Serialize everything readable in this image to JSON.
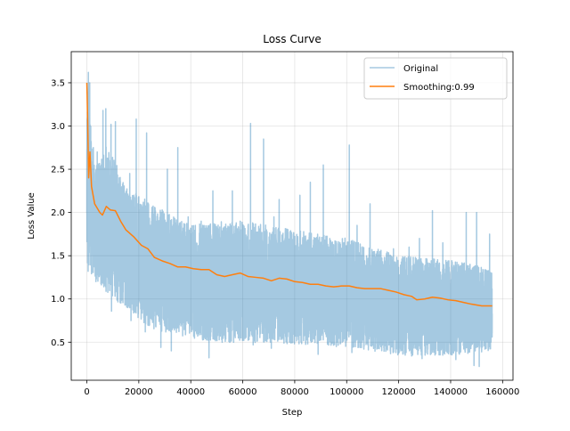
{
  "chart_data": {
    "type": "line",
    "title": "Loss Curve",
    "xlabel": "Step",
    "ylabel": "Loss Value",
    "xlim": [
      -6000,
      164000
    ],
    "ylim": [
      0.06,
      3.86
    ],
    "xticks": [
      0,
      20000,
      40000,
      60000,
      80000,
      100000,
      120000,
      140000,
      160000
    ],
    "yticks": [
      0.5,
      1.0,
      1.5,
      2.0,
      2.5,
      3.0,
      3.5
    ],
    "grid": true,
    "legend_position": "top-right",
    "series": [
      {
        "name": "Original",
        "color": "#1f77b4",
        "alpha": 0.4,
        "x_start": 0,
        "x_end": 156000,
        "points_per_segment": 17,
        "low_envelope": [
          [
            0,
            1.35
          ],
          [
            3000,
            1.25
          ],
          [
            8000,
            1.05
          ],
          [
            15000,
            0.9
          ],
          [
            25000,
            0.65
          ],
          [
            40000,
            0.55
          ],
          [
            50000,
            0.5
          ],
          [
            60000,
            0.5
          ],
          [
            80000,
            0.48
          ],
          [
            100000,
            0.45
          ],
          [
            120000,
            0.35
          ],
          [
            140000,
            0.35
          ],
          [
            156000,
            0.4
          ]
        ],
        "high_envelope": [
          [
            0,
            3.5
          ],
          [
            3000,
            2.5
          ],
          [
            8000,
            2.8
          ],
          [
            15000,
            2.3
          ],
          [
            25000,
            2.1
          ],
          [
            40000,
            1.85
          ],
          [
            50000,
            1.9
          ],
          [
            60000,
            1.9
          ],
          [
            80000,
            1.8
          ],
          [
            100000,
            1.7
          ],
          [
            120000,
            1.5
          ],
          [
            140000,
            1.45
          ],
          [
            156000,
            1.35
          ]
        ],
        "peaks": [
          [
            600,
            3.62
          ],
          [
            1100,
            3.5
          ],
          [
            2500,
            2.75
          ],
          [
            4000,
            2.7
          ],
          [
            5500,
            2.55
          ],
          [
            6200,
            3.18
          ],
          [
            7300,
            3.2
          ],
          [
            9300,
            3.02
          ],
          [
            11000,
            3.05
          ],
          [
            13500,
            1.22
          ],
          [
            16500,
            2.45
          ],
          [
            19000,
            3.08
          ],
          [
            23000,
            2.92
          ],
          [
            27000,
            1.85
          ],
          [
            31000,
            2.5
          ],
          [
            35000,
            2.75
          ],
          [
            39000,
            1.95
          ],
          [
            44000,
            1.9
          ],
          [
            48500,
            2.25
          ],
          [
            52000,
            1.75
          ],
          [
            56000,
            2.25
          ],
          [
            59000,
            1.9
          ],
          [
            63000,
            3.03
          ],
          [
            68000,
            2.85
          ],
          [
            72000,
            1.95
          ],
          [
            74000,
            2.15
          ],
          [
            78000,
            1.8
          ],
          [
            82000,
            2.2
          ],
          [
            86000,
            2.35
          ],
          [
            91000,
            2.55
          ],
          [
            96000,
            1.6
          ],
          [
            101000,
            2.78
          ],
          [
            104000,
            1.85
          ],
          [
            109000,
            2.1
          ],
          [
            114000,
            1.4
          ],
          [
            118000,
            1.58
          ],
          [
            124000,
            1.6
          ],
          [
            128000,
            1.7
          ],
          [
            133000,
            2.02
          ],
          [
            137000,
            1.65
          ],
          [
            142000,
            1.95
          ],
          [
            146000,
            2.0
          ],
          [
            150000,
            2.0
          ],
          [
            153000,
            1.55
          ],
          [
            155000,
            1.75
          ]
        ],
        "valleys": [
          [
            500,
            1.32
          ],
          [
            3500,
            1.2
          ],
          [
            9500,
            0.86
          ],
          [
            17000,
            0.75
          ],
          [
            22500,
            0.62
          ],
          [
            28500,
            0.44
          ],
          [
            32500,
            0.4
          ],
          [
            38000,
            0.6
          ],
          [
            43000,
            0.72
          ],
          [
            47000,
            0.32
          ],
          [
            53000,
            0.58
          ],
          [
            58000,
            0.6
          ],
          [
            64000,
            0.47
          ],
          [
            71000,
            0.43
          ],
          [
            78000,
            0.5
          ],
          [
            85000,
            0.48
          ],
          [
            89000,
            0.36
          ],
          [
            96000,
            0.45
          ],
          [
            102000,
            0.38
          ],
          [
            111000,
            0.55
          ],
          [
            122000,
            0.48
          ],
          [
            125000,
            0.34
          ],
          [
            129000,
            0.31
          ],
          [
            136000,
            0.52
          ],
          [
            142000,
            0.3
          ],
          [
            149000,
            0.23
          ],
          [
            151000,
            0.22
          ],
          [
            153000,
            0.55
          ]
        ]
      },
      {
        "name": "Smoothing:0.99",
        "color": "#ff7f0e",
        "points": [
          [
            0,
            3.5
          ],
          [
            300,
            3.1
          ],
          [
            700,
            2.4
          ],
          [
            1200,
            2.7
          ],
          [
            1800,
            2.3
          ],
          [
            3000,
            2.1
          ],
          [
            5000,
            2.0
          ],
          [
            6000,
            1.97
          ],
          [
            7500,
            2.07
          ],
          [
            9000,
            2.03
          ],
          [
            11000,
            2.02
          ],
          [
            13000,
            1.9
          ],
          [
            15000,
            1.8
          ],
          [
            18000,
            1.72
          ],
          [
            21000,
            1.62
          ],
          [
            23500,
            1.58
          ],
          [
            26000,
            1.48
          ],
          [
            29000,
            1.44
          ],
          [
            32000,
            1.41
          ],
          [
            35000,
            1.37
          ],
          [
            38000,
            1.37
          ],
          [
            41000,
            1.35
          ],
          [
            44000,
            1.34
          ],
          [
            47000,
            1.34
          ],
          [
            50000,
            1.28
          ],
          [
            53000,
            1.26
          ],
          [
            56000,
            1.28
          ],
          [
            59000,
            1.3
          ],
          [
            62000,
            1.26
          ],
          [
            65000,
            1.25
          ],
          [
            68000,
            1.24
          ],
          [
            71000,
            1.21
          ],
          [
            74000,
            1.24
          ],
          [
            77000,
            1.23
          ],
          [
            80000,
            1.2
          ],
          [
            83000,
            1.19
          ],
          [
            86000,
            1.17
          ],
          [
            89000,
            1.17
          ],
          [
            92000,
            1.15
          ],
          [
            95000,
            1.14
          ],
          [
            98000,
            1.15
          ],
          [
            101000,
            1.15
          ],
          [
            104000,
            1.13
          ],
          [
            107000,
            1.12
          ],
          [
            110000,
            1.12
          ],
          [
            113000,
            1.12
          ],
          [
            116000,
            1.1
          ],
          [
            119000,
            1.08
          ],
          [
            122000,
            1.05
          ],
          [
            125000,
            1.03
          ],
          [
            127000,
            0.99
          ],
          [
            130000,
            1.0
          ],
          [
            133000,
            1.02
          ],
          [
            136000,
            1.01
          ],
          [
            139000,
            0.99
          ],
          [
            142000,
            0.98
          ],
          [
            145000,
            0.96
          ],
          [
            148000,
            0.94
          ],
          [
            150000,
            0.93
          ],
          [
            152000,
            0.92
          ],
          [
            156000,
            0.92
          ]
        ]
      }
    ]
  }
}
